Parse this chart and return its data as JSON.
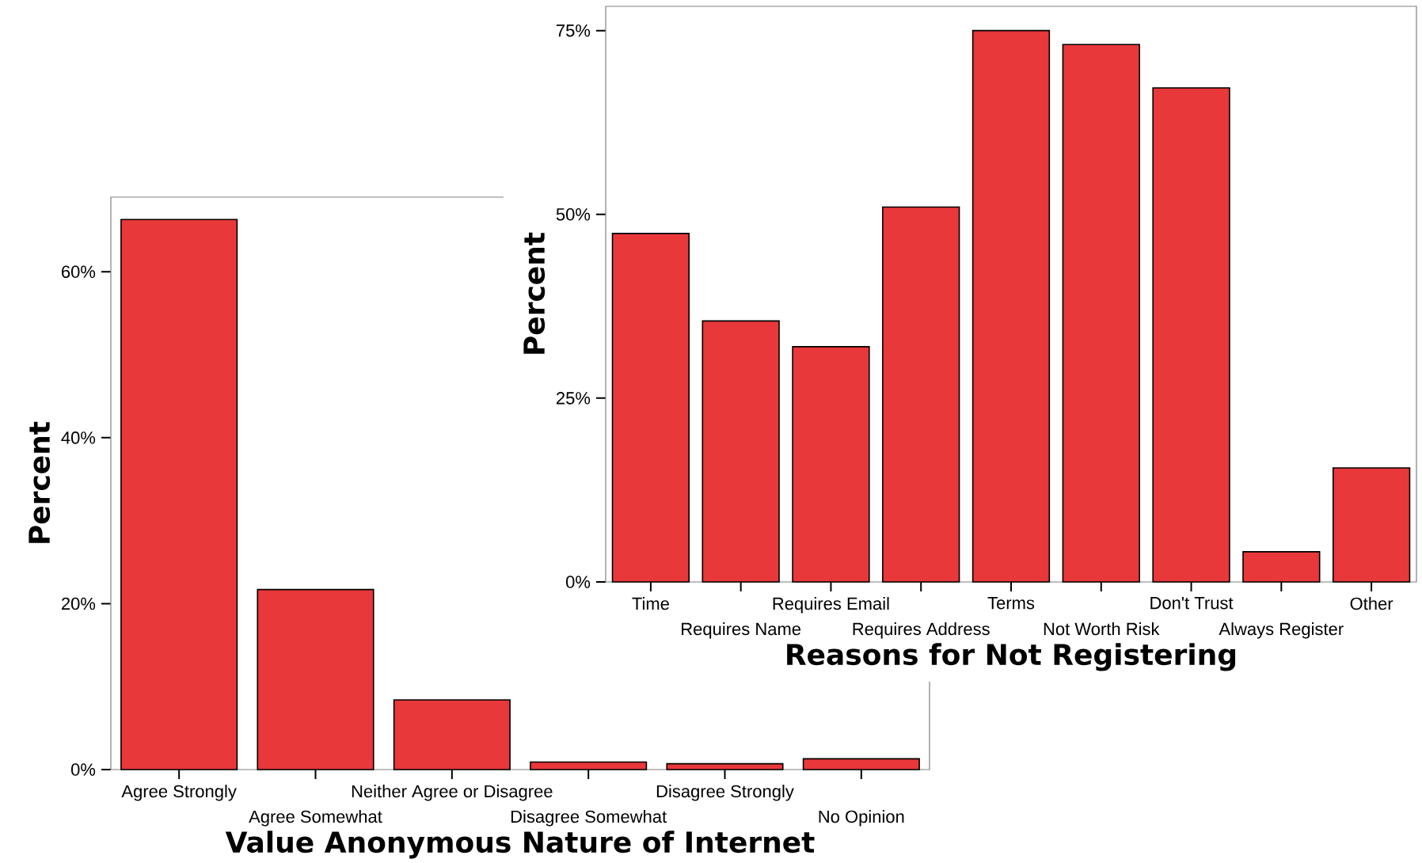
{
  "chart_data": [
    {
      "type": "bar",
      "xlabel": "Value Anonymous Nature of Internet",
      "ylabel": "Percent",
      "categories": [
        "Agree Strongly",
        "Agree Somewhat",
        "Neither Agree or Disagree",
        "Disagree Somewhat",
        "Disagree Strongly",
        "No Opinion"
      ],
      "values": [
        66.3,
        21.7,
        8.4,
        0.9,
        0.7,
        1.3
      ],
      "color": "#e8383a",
      "ylim": [
        0,
        69
      ],
      "yticks": [
        {
          "value": 0,
          "label": "0%"
        },
        {
          "value": 20,
          "label": "20%"
        },
        {
          "value": 40,
          "label": "40%"
        },
        {
          "value": 60,
          "label": "60%"
        }
      ],
      "grid": false
    },
    {
      "type": "bar",
      "xlabel": "Reasons for Not Registering",
      "ylabel": "Percent",
      "categories": [
        "Time",
        "Requires Name",
        "Requires Email",
        "Requires Address",
        "Terms",
        "Not Worth Risk",
        "Don't Trust",
        "Always Register",
        "Other"
      ],
      "values": [
        47.4,
        35.5,
        32.0,
        51.0,
        75.0,
        73.1,
        67.2,
        4.1,
        15.5
      ],
      "color": "#e8383a",
      "ylim": [
        0,
        78.3
      ],
      "yticks": [
        {
          "value": 0,
          "label": "0%"
        },
        {
          "value": 25,
          "label": "25%"
        },
        {
          "value": 50,
          "label": "50%"
        },
        {
          "value": 75,
          "label": "75%"
        }
      ],
      "grid": false
    }
  ]
}
